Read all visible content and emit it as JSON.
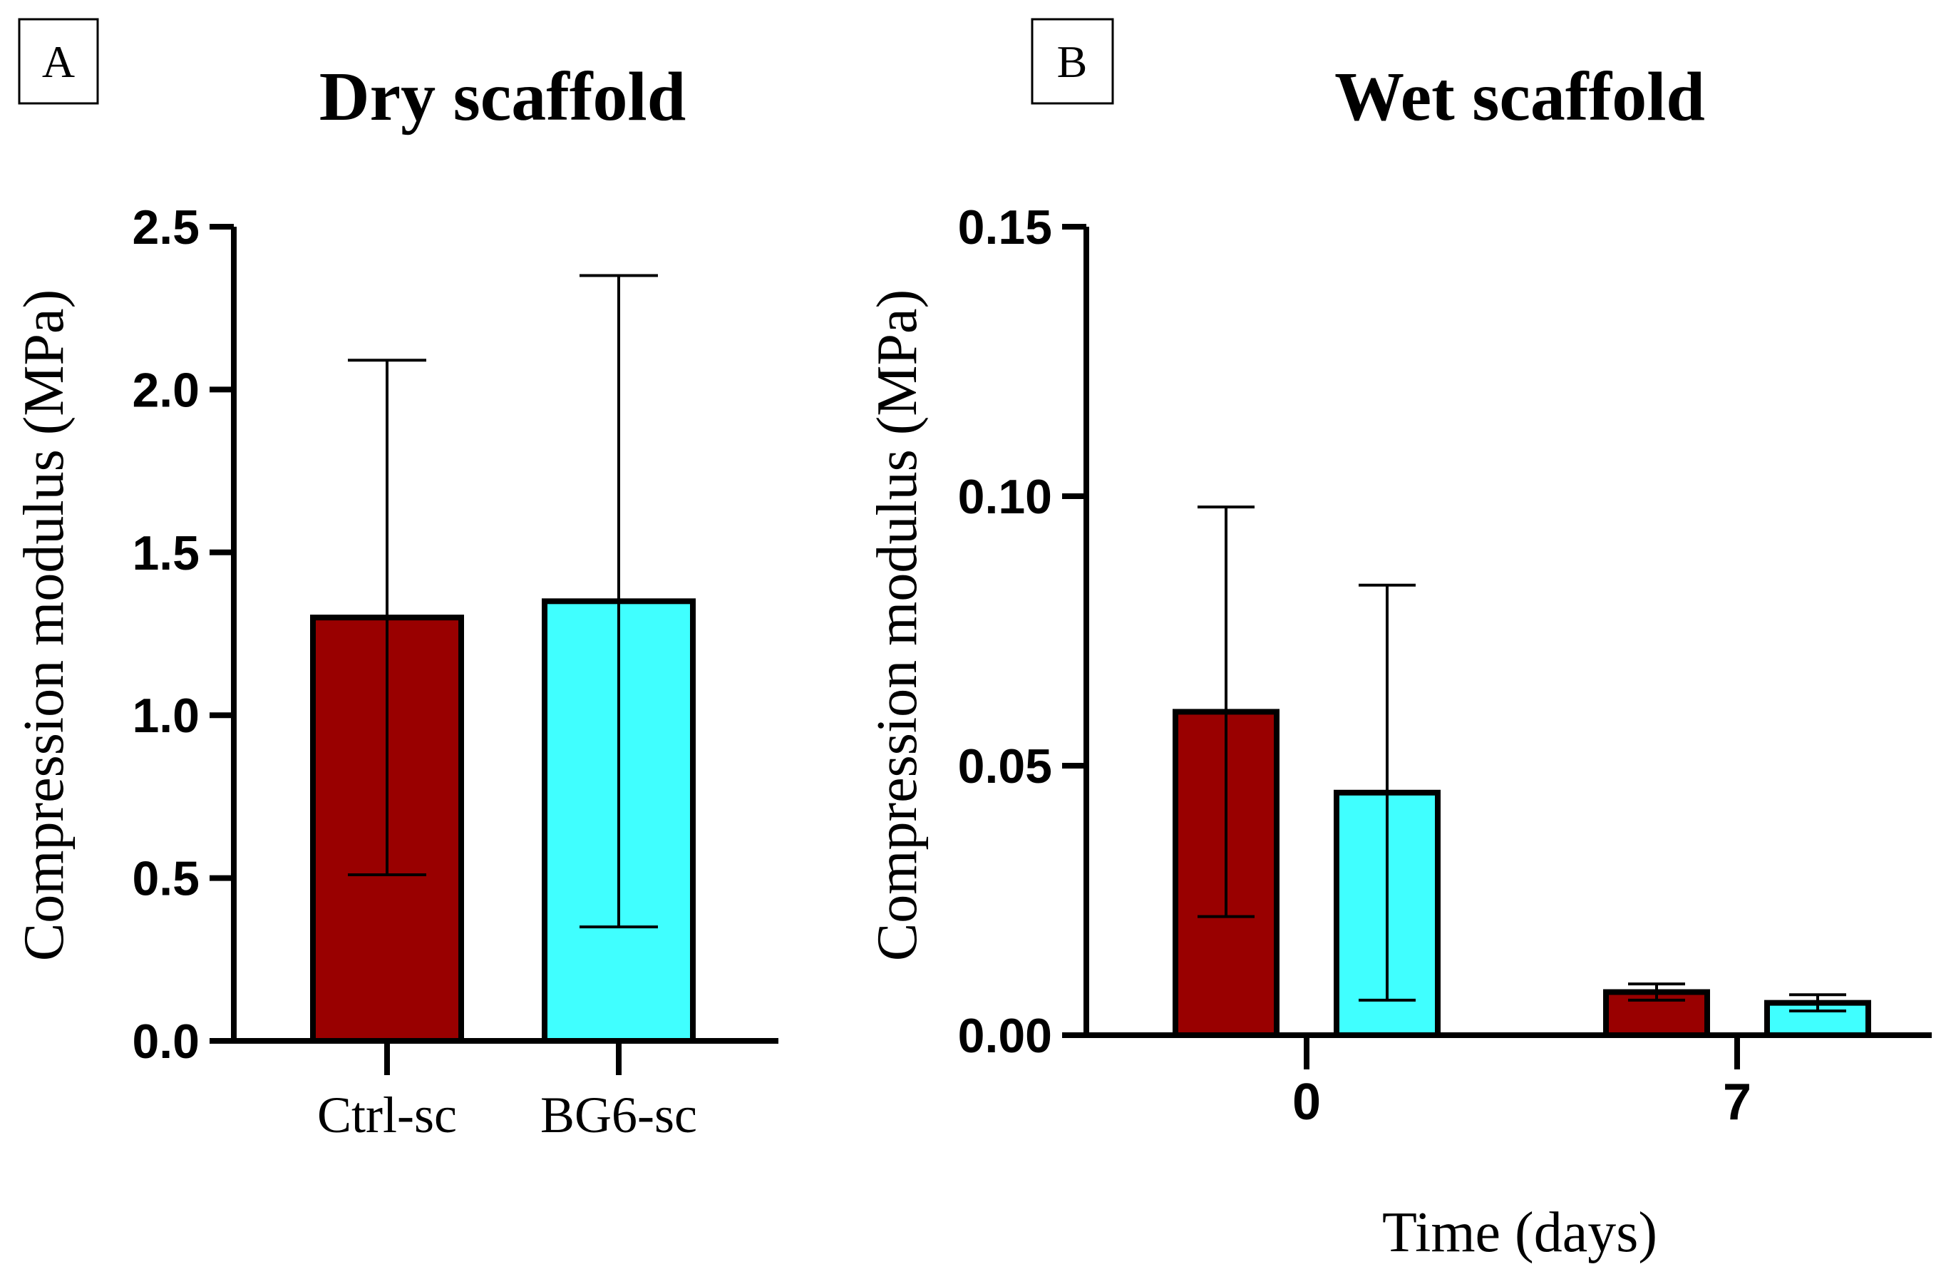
{
  "colors": {
    "ctrl": "#990000",
    "bg6": "#40FFFF",
    "axis": "#000000"
  },
  "chart_data": [
    {
      "type": "bar",
      "panel_label": "A",
      "title": "Dry scaffold",
      "ylabel": "Compression modulus (MPa)",
      "xlabel": "",
      "ylim": [
        0,
        2.5
      ],
      "yticks": [
        "0.0",
        "0.5",
        "1.0",
        "1.5",
        "2.0",
        "2.5"
      ],
      "categories": [
        "Ctrl-sc",
        "BG6-sc"
      ],
      "values": [
        1.3,
        1.35
      ],
      "error": [
        0.79,
        1.0
      ],
      "grid": false
    },
    {
      "type": "bar",
      "panel_label": "B",
      "title": "Wet scaffold",
      "ylabel": "Compression modulus (MPa)",
      "xlabel": "Time (days)",
      "ylim": [
        0,
        0.15
      ],
      "yticks": [
        "0.00",
        "0.05",
        "0.10",
        "0.15"
      ],
      "categories": [
        "0",
        "7"
      ],
      "series": [
        {
          "values": [
            0.06,
            0.008
          ],
          "error": [
            0.038,
            0.0015
          ]
        },
        {
          "values": [
            0.045,
            0.006
          ],
          "error": [
            0.0385,
            0.0015
          ]
        }
      ],
      "grid": false
    }
  ]
}
